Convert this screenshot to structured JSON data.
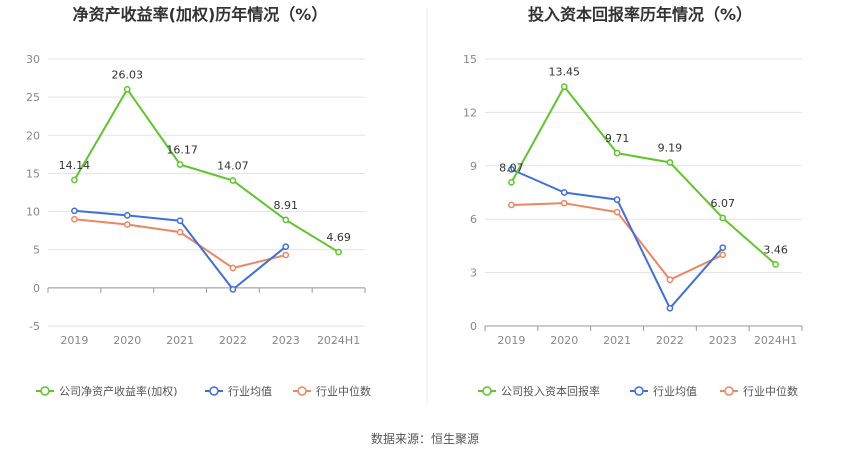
{
  "source": "数据来源：恒生聚源",
  "colors": {
    "company": "#5ec62a",
    "avg": "#3f6fdd",
    "median": "#ee8660",
    "grid": "#e3e3e3",
    "axis": "#999999"
  },
  "chart_data": [
    {
      "type": "line",
      "title": "净资产收益率(加权)历年情况（%）",
      "categories": [
        "2019",
        "2020",
        "2021",
        "2022",
        "2023",
        "2024H1"
      ],
      "ylim": [
        -5,
        30
      ],
      "yticks": [
        -5,
        0,
        5,
        10,
        15,
        20,
        25,
        30
      ],
      "ytick_labels": [
        "-5",
        "0",
        "5",
        "10",
        "15",
        "20",
        "25",
        "30"
      ],
      "series": [
        {
          "key": "company",
          "name": "公司净资产收益率(加权)",
          "values": [
            14.14,
            26.03,
            16.17,
            14.07,
            8.91,
            4.69
          ],
          "labels": [
            "14.14",
            "26.03",
            "16.17",
            "14.07",
            "8.91",
            "4.69"
          ]
        },
        {
          "key": "avg",
          "name": "行业均值",
          "values": [
            10.1,
            9.5,
            8.8,
            -0.2,
            5.4,
            null
          ]
        },
        {
          "key": "median",
          "name": "行业中位数",
          "values": [
            9.0,
            8.3,
            7.3,
            2.6,
            4.3,
            null
          ]
        }
      ]
    },
    {
      "type": "line",
      "title": "投入资本回报率历年情况（%）",
      "categories": [
        "2019",
        "2020",
        "2021",
        "2022",
        "2023",
        "2024H1"
      ],
      "ylim": [
        0,
        15
      ],
      "yticks": [
        0,
        3,
        6,
        9,
        12,
        15
      ],
      "ytick_labels": [
        "0",
        "3",
        "6",
        "9",
        "12",
        "15"
      ],
      "series": [
        {
          "key": "company",
          "name": "公司投入资本回报率",
          "values": [
            8.07,
            13.45,
            9.71,
            9.19,
            6.07,
            3.46
          ],
          "labels": [
            "8.07",
            "13.45",
            "9.71",
            "9.19",
            "6.07",
            "3.46"
          ]
        },
        {
          "key": "avg",
          "name": "行业均值",
          "values": [
            8.8,
            7.5,
            7.1,
            1.0,
            4.4,
            null
          ]
        },
        {
          "key": "median",
          "name": "行业中位数",
          "values": [
            6.8,
            6.9,
            6.4,
            2.6,
            4.0,
            null
          ]
        }
      ]
    }
  ]
}
